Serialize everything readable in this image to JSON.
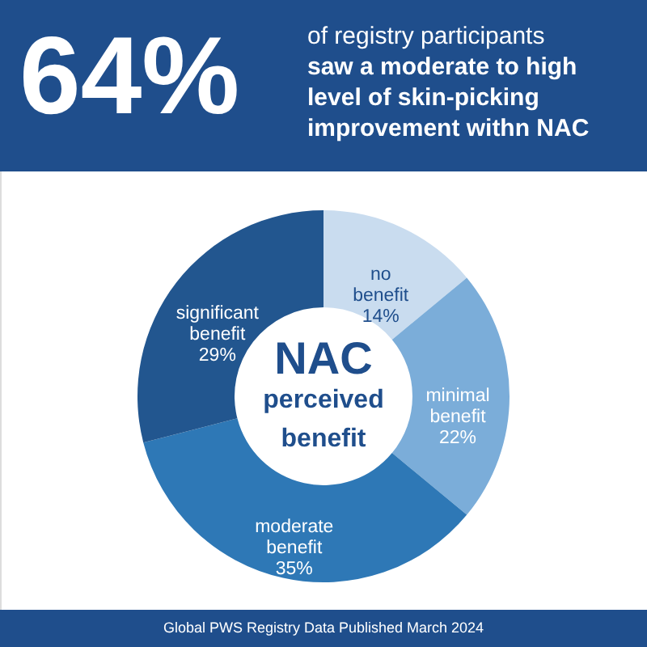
{
  "chart_data": {
    "type": "donut",
    "title": "64%",
    "subtitle": [
      "of registry participants",
      "saw a moderate to high",
      "level of skin-picking",
      "improvement withn NAC"
    ],
    "categories": [
      "no benefit",
      "minimal benefit",
      "moderate benefit",
      "significant benefit"
    ],
    "values": [
      14,
      22,
      35,
      29
    ],
    "value_labels": [
      "14%",
      "22%",
      "35%",
      "29%"
    ],
    "colors": [
      "#c9dcef",
      "#7badd9",
      "#2e78b6",
      "#22568f"
    ],
    "annotations": [
      "NAC perceived benefit",
      "Global PWS Registry Data Published March 2024"
    ]
  }
}
